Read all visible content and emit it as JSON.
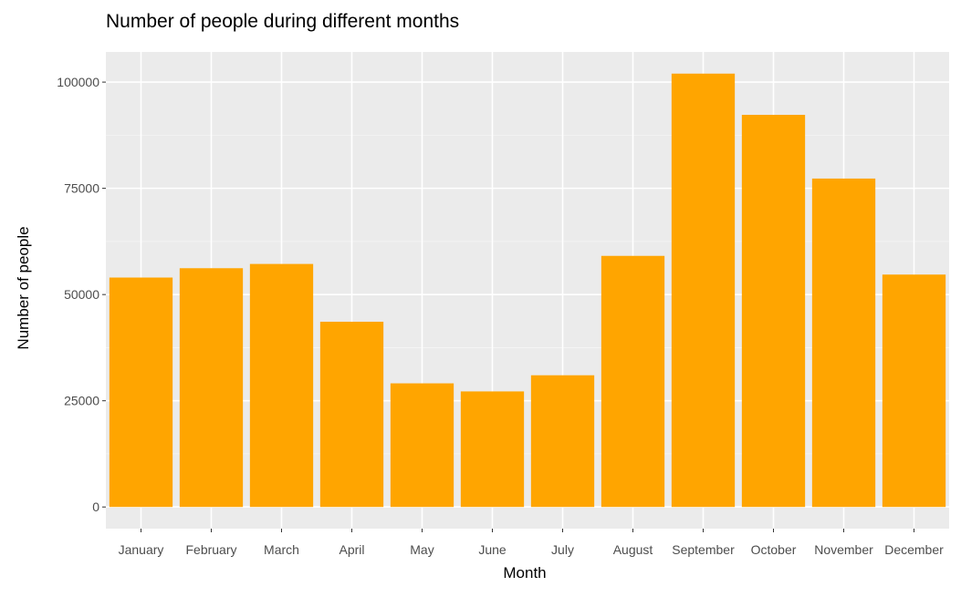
{
  "chart_data": {
    "type": "bar",
    "title": "Number of people during different months",
    "xlabel": "Month",
    "ylabel": "Number of people",
    "categories": [
      "January",
      "February",
      "March",
      "April",
      "May",
      "June",
      "July",
      "August",
      "September",
      "October",
      "November",
      "December"
    ],
    "values": [
      54000,
      56200,
      57200,
      43600,
      29100,
      27200,
      31000,
      59100,
      102000,
      92300,
      77300,
      54700
    ],
    "ylim": [
      -5100,
      107100
    ],
    "yticks": [
      0,
      25000,
      50000,
      75000,
      100000
    ],
    "ytick_labels": [
      "0",
      "25000",
      "50000",
      "75000",
      "100000"
    ],
    "grid": true,
    "legend": "none",
    "colors": {
      "bar": "#FFA500",
      "panel": "#EBEBEB",
      "grid_major": "#FFFFFF",
      "grid_minor": "#F5F5F5",
      "tick_text": "#4D4D4D",
      "tick_mark": "#333333"
    }
  }
}
